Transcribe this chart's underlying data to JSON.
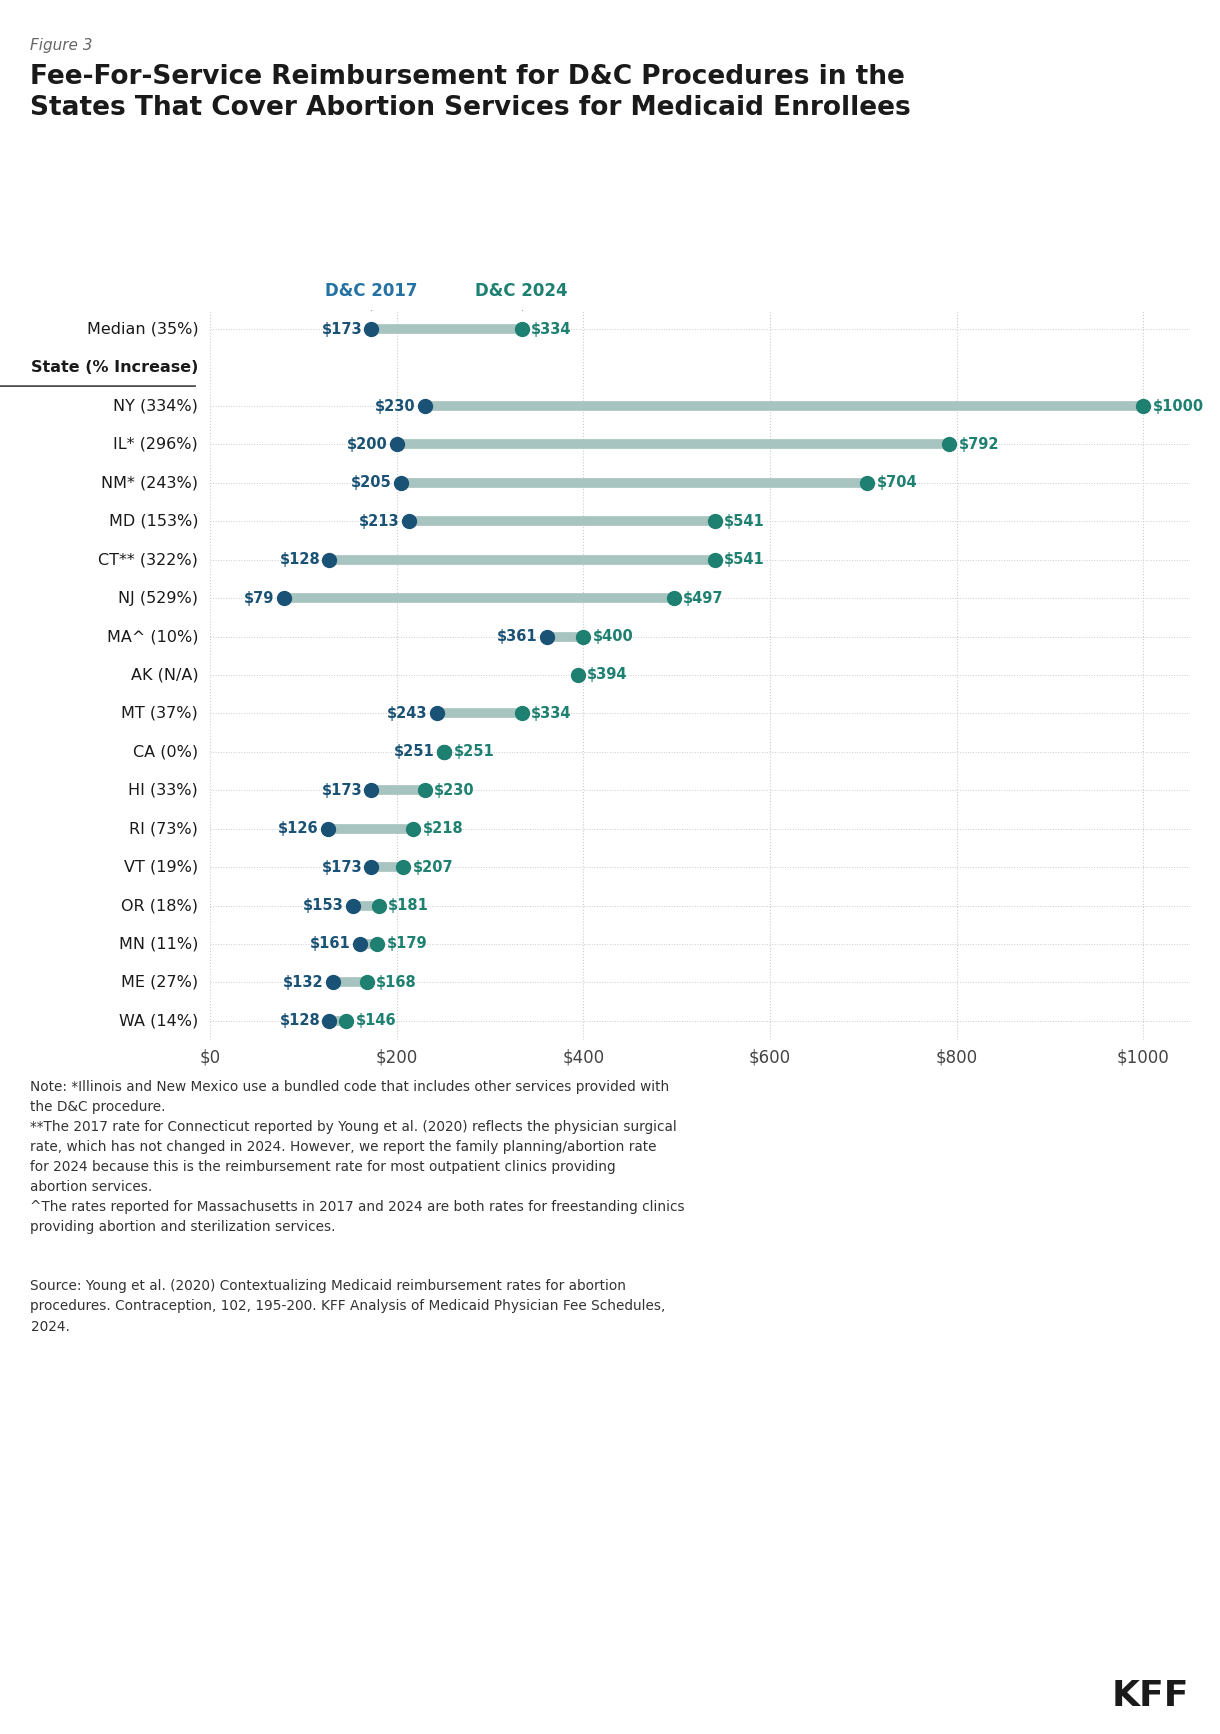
{
  "figure_label": "Figure 3",
  "title_line1": "Fee-For-Service Reimbursement for D&C Procedures in the",
  "title_line2": "States That Cover Abortion Services for Medicaid Enrollees",
  "col_header_2017": "D&C 2017",
  "col_header_2024": "D&C 2024",
  "categories": [
    "Median (35%)",
    "State (% Increase)",
    "NY (334%)",
    "IL* (296%)",
    "NM* (243%)",
    "MD (153%)",
    "CT** (322%)",
    "NJ (529%)",
    "MA^ (10%)",
    "AK (N/A)",
    "MT (37%)",
    "CA (0%)",
    "HI (33%)",
    "RI (73%)",
    "VT (19%)",
    "OR (18%)",
    "MN (11%)",
    "ME (27%)",
    "WA (14%)"
  ],
  "val_2017": [
    173,
    null,
    230,
    200,
    205,
    213,
    128,
    79,
    361,
    null,
    243,
    251,
    173,
    126,
    173,
    153,
    161,
    132,
    128
  ],
  "val_2024": [
    334,
    null,
    1000,
    792,
    704,
    541,
    541,
    497,
    400,
    394,
    334,
    251,
    230,
    218,
    207,
    181,
    179,
    168,
    146
  ],
  "color_2017": "#1a5276",
  "color_2024": "#1e8070",
  "color_line": "#a8c4c0",
  "color_header_2017": "#2471a3",
  "color_header_2024": "#1e8070",
  "xlim": [
    0,
    1050
  ],
  "xticks": [
    0,
    200,
    400,
    600,
    800,
    1000
  ],
  "xticklabels": [
    "$0",
    "$200",
    "$400",
    "$600",
    "$800",
    "$1000"
  ],
  "background_color": "#ffffff",
  "note_text": "Note: *Illinois and New Mexico use a bundled code that includes other services provided with\nthe D&C procedure.\n**The 2017 rate for Connecticut reported by Young et al. (2020) reflects the physician surgical\nrate, which has not changed in 2024. However, we report the family planning/abortion rate\nfor 2024 because this is the reimbursement rate for most outpatient clinics providing\nabortion services.\n^The rates reported for Massachusetts in 2017 and 2024 are both rates for freestanding clinics\nproviding abortion and sterilization services.",
  "source_text": "Source: Young et al. (2020) Contextualizing Medicaid reimbursement rates for abortion\nprocedures. Contraception, 102, 195-200. KFF Analysis of Medicaid Physician Fee Schedules,\n2024.",
  "kff_text": "KFF"
}
